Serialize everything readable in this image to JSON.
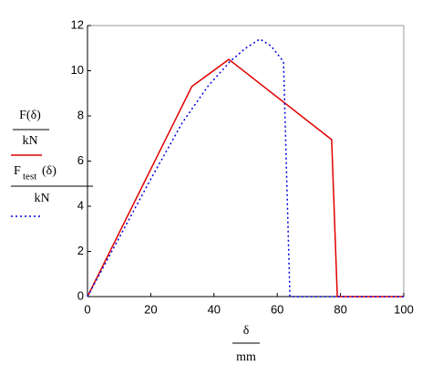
{
  "chart_data": {
    "type": "line",
    "series": [
      {
        "name": "F(δ)",
        "unit": "kN",
        "color": "#e00000",
        "dash": "solid",
        "x": [
          0,
          33,
          44.7,
          77.2,
          79,
          100
        ],
        "values": [
          0,
          9.3,
          10.5,
          6.95,
          0,
          0
        ]
      },
      {
        "name": "F",
        "subscript": "test",
        "argument": "(δ)",
        "unit": "kN",
        "color": "#0000e0",
        "dash": "dotted",
        "x": [
          0,
          10,
          20,
          30,
          38,
          45,
          50,
          54.5,
          58,
          62,
          64,
          100
        ],
        "values": [
          0,
          2.6,
          5.2,
          7.7,
          9.3,
          10.4,
          11.0,
          11.4,
          11.1,
          10.4,
          0,
          0
        ]
      }
    ],
    "xlabel": "δ",
    "xunit": "mm",
    "xlim": [
      0,
      100
    ],
    "xticks": [
      0,
      20,
      40,
      60,
      80,
      100
    ],
    "ylim": [
      0,
      12
    ],
    "yticks": [
      0,
      2,
      4,
      6,
      8,
      10,
      12
    ]
  }
}
